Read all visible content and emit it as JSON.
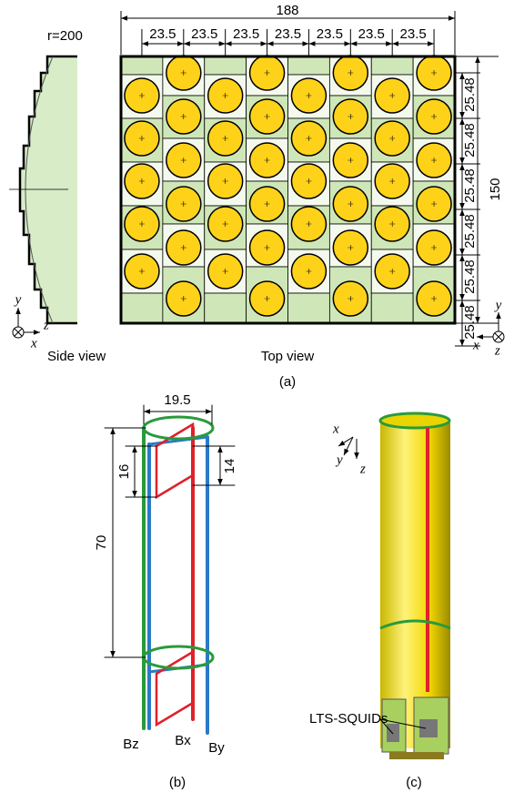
{
  "panel_a": {
    "side_view": {
      "radius_label": "r=200",
      "caption": "Side view",
      "axes": {
        "y": "y",
        "x": "x",
        "z": "z"
      }
    },
    "top_view": {
      "width_label": "188",
      "pitch_labels": [
        "23.5",
        "23.5",
        "23.5",
        "23.5",
        "23.5",
        "23.5",
        "23.5"
      ],
      "row_labels": [
        "25.48",
        "25.48",
        "25.48",
        "25.48",
        "25.48",
        "25.48"
      ],
      "height_label": "150",
      "caption": "Top view",
      "axes": {
        "y": "y",
        "x": "x",
        "z": "z"
      }
    },
    "label": "(a)"
  },
  "panel_b": {
    "dimensions": {
      "diameter": "19.5",
      "loop_height": "16",
      "loop_height_inner": "14",
      "baseline": "70"
    },
    "channels": [
      "Bz",
      "Bx",
      "By"
    ],
    "label": "(b)"
  },
  "panel_c": {
    "axes": {
      "x": "x",
      "y": "y",
      "z": "z"
    },
    "callout": "LTS-SQUIDs",
    "label": "(c)"
  }
}
